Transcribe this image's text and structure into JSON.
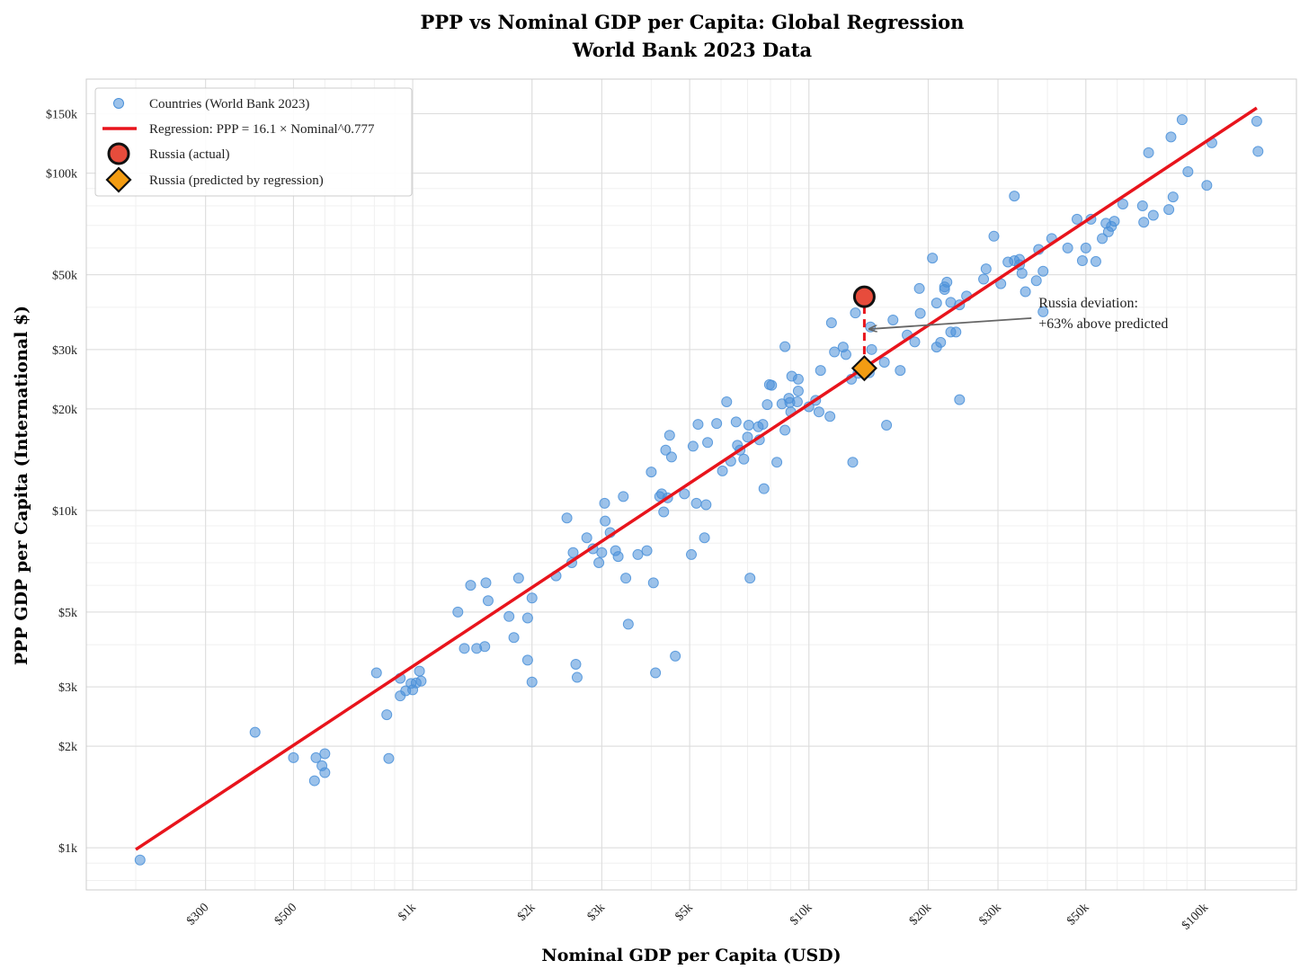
{
  "chart_data": {
    "type": "scatter",
    "title": "PPP vs Nominal GDP per Capita: Global Regression",
    "subtitle": "World Bank 2023 Data",
    "xlabel": "Nominal GDP per Capita (USD)",
    "ylabel": "PPP GDP per Capita (International $)",
    "xscale": "log",
    "yscale": "log",
    "xlim": [
      150,
      170000
    ],
    "ylim": [
      750,
      190000
    ],
    "grid": true,
    "x_ticks": [
      {
        "value": 300,
        "label": "$300"
      },
      {
        "value": 500,
        "label": "$500"
      },
      {
        "value": 1000,
        "label": "$1k"
      },
      {
        "value": 2000,
        "label": "$2k"
      },
      {
        "value": 3000,
        "label": "$3k"
      },
      {
        "value": 5000,
        "label": "$5k"
      },
      {
        "value": 10000,
        "label": "$10k"
      },
      {
        "value": 20000,
        "label": "$20k"
      },
      {
        "value": 30000,
        "label": "$30k"
      },
      {
        "value": 50000,
        "label": "$50k"
      },
      {
        "value": 100000,
        "label": "$100k"
      }
    ],
    "y_ticks": [
      {
        "value": 1000,
        "label": "$1k"
      },
      {
        "value": 2000,
        "label": "$2k"
      },
      {
        "value": 3000,
        "label": "$3k"
      },
      {
        "value": 5000,
        "label": "$5k"
      },
      {
        "value": 10000,
        "label": "$10k"
      },
      {
        "value": 20000,
        "label": "$20k"
      },
      {
        "value": 30000,
        "label": "$30k"
      },
      {
        "value": 50000,
        "label": "$50k"
      },
      {
        "value": 100000,
        "label": "$100k"
      },
      {
        "value": 150000,
        "label": "$150k"
      }
    ],
    "legend": {
      "placement": "top-left",
      "entries": [
        {
          "label": "Countries (World Bank 2023)",
          "marker": "circle",
          "color": "#4a90d9"
        },
        {
          "label": "Regression: PPP = 16.1 × Nominal^0.777",
          "marker": "line",
          "color": "#e8141c"
        },
        {
          "label": "Russia (actual)",
          "marker": "circle-large",
          "color": "#e74c3c"
        },
        {
          "label": "Russia (predicted by regression)",
          "marker": "diamond",
          "color": "#f39c12"
        }
      ]
    },
    "regression": {
      "a": 16.1,
      "b": 0.777,
      "x_range": [
        200,
        135000
      ],
      "color": "#e8141c"
    },
    "russia": {
      "nominal": 13800,
      "actual": 43000,
      "predicted": 26400,
      "actual_color": "#e74c3c",
      "predicted_color": "#f39c12"
    },
    "annotation": {
      "lines": [
        "Russia deviation:",
        "+63% above predicted"
      ],
      "x": 38000,
      "y": 40000,
      "arrow_to_x": 14200,
      "arrow_to_y": 34500
    },
    "countries": {
      "color": "#4a90d9",
      "points": [
        [
          205,
          920
        ],
        [
          400,
          2200
        ],
        [
          500,
          1850
        ],
        [
          570,
          1850
        ],
        [
          590,
          1750
        ],
        [
          600,
          1900
        ],
        [
          600,
          1670
        ],
        [
          565,
          1580
        ],
        [
          810,
          3300
        ],
        [
          860,
          2480
        ],
        [
          870,
          1840
        ],
        [
          930,
          3180
        ],
        [
          930,
          2820
        ],
        [
          960,
          2920
        ],
        [
          990,
          3070
        ],
        [
          1000,
          2940
        ],
        [
          1020,
          3080
        ],
        [
          1040,
          3340
        ],
        [
          1050,
          3120
        ],
        [
          1300,
          5000
        ],
        [
          1350,
          3900
        ],
        [
          1400,
          6000
        ],
        [
          1450,
          3900
        ],
        [
          1520,
          3950
        ],
        [
          1530,
          6100
        ],
        [
          1550,
          5400
        ],
        [
          1750,
          4850
        ],
        [
          1800,
          4200
        ],
        [
          1850,
          6300
        ],
        [
          1950,
          3600
        ],
        [
          1950,
          4800
        ],
        [
          2000,
          3100
        ],
        [
          2000,
          5500
        ],
        [
          2300,
          6400
        ],
        [
          2450,
          9500
        ],
        [
          2520,
          7000
        ],
        [
          2540,
          7500
        ],
        [
          2580,
          3500
        ],
        [
          2600,
          3200
        ],
        [
          2750,
          8300
        ],
        [
          2850,
          7700
        ],
        [
          2950,
          7000
        ],
        [
          3000,
          7500
        ],
        [
          3050,
          10500
        ],
        [
          3060,
          9300
        ],
        [
          3150,
          8600
        ],
        [
          3250,
          7600
        ],
        [
          3300,
          7300
        ],
        [
          3400,
          11000
        ],
        [
          3450,
          6300
        ],
        [
          3500,
          4600
        ],
        [
          3700,
          7400
        ],
        [
          3900,
          7600
        ],
        [
          4000,
          13000
        ],
        [
          4050,
          6100
        ],
        [
          4100,
          3300
        ],
        [
          4200,
          11000
        ],
        [
          4250,
          11200
        ],
        [
          4300,
          9900
        ],
        [
          4350,
          15100
        ],
        [
          4400,
          10900
        ],
        [
          4450,
          16700
        ],
        [
          4500,
          14400
        ],
        [
          4600,
          3700
        ],
        [
          4850,
          11200
        ],
        [
          5050,
          7400
        ],
        [
          5100,
          15500
        ],
        [
          5200,
          10500
        ],
        [
          5250,
          18000
        ],
        [
          5450,
          8300
        ],
        [
          5500,
          10400
        ],
        [
          5550,
          15900
        ],
        [
          5850,
          18100
        ],
        [
          6050,
          13100
        ],
        [
          6200,
          21000
        ],
        [
          6350,
          14000
        ],
        [
          6550,
          18300
        ],
        [
          6600,
          15600
        ],
        [
          6700,
          15100
        ],
        [
          6850,
          14200
        ],
        [
          7000,
          16500
        ],
        [
          7050,
          17900
        ],
        [
          7100,
          6300
        ],
        [
          7450,
          17700
        ],
        [
          7500,
          16200
        ],
        [
          7650,
          18000
        ],
        [
          7700,
          11600
        ],
        [
          7850,
          20600
        ],
        [
          7950,
          23600
        ],
        [
          8050,
          23500
        ],
        [
          8300,
          13900
        ],
        [
          8550,
          20700
        ],
        [
          8700,
          17300
        ],
        [
          8700,
          30600
        ],
        [
          8900,
          21500
        ],
        [
          8950,
          20900
        ],
        [
          9000,
          19600
        ],
        [
          9050,
          25000
        ],
        [
          9350,
          21000
        ],
        [
          9400,
          24500
        ],
        [
          9400,
          22600
        ],
        [
          10000,
          20300
        ],
        [
          10400,
          21200
        ],
        [
          10600,
          19600
        ],
        [
          10700,
          26000
        ],
        [
          11300,
          19000
        ],
        [
          11400,
          36000
        ],
        [
          11600,
          29500
        ],
        [
          12200,
          30500
        ],
        [
          12400,
          29000
        ],
        [
          12800,
          24500
        ],
        [
          12900,
          13900
        ],
        [
          13100,
          38500
        ],
        [
          13300,
          25500
        ],
        [
          13500,
          42000
        ],
        [
          14200,
          25600
        ],
        [
          14400,
          30000
        ],
        [
          14300,
          35000
        ],
        [
          15500,
          27500
        ],
        [
          15700,
          17900
        ],
        [
          16300,
          36700
        ],
        [
          17000,
          26000
        ],
        [
          17700,
          33100
        ],
        [
          19000,
          45500
        ],
        [
          18500,
          31600
        ],
        [
          19100,
          38400
        ],
        [
          20500,
          56000
        ],
        [
          21000,
          41200
        ],
        [
          21000,
          30500
        ],
        [
          21500,
          31500
        ],
        [
          22000,
          46000
        ],
        [
          22000,
          45200
        ],
        [
          22300,
          47500
        ],
        [
          22800,
          41400
        ],
        [
          22800,
          33800
        ],
        [
          23500,
          33800
        ],
        [
          24000,
          21300
        ],
        [
          24000,
          40700
        ],
        [
          25000,
          43200
        ],
        [
          27600,
          48500
        ],
        [
          28000,
          52000
        ],
        [
          29300,
          65000
        ],
        [
          30500,
          47000
        ],
        [
          31800,
          54500
        ],
        [
          33000,
          85500
        ],
        [
          33000,
          55000
        ],
        [
          34000,
          53500
        ],
        [
          34500,
          50500
        ],
        [
          35200,
          44500
        ],
        [
          34000,
          55500
        ],
        [
          37500,
          48000
        ],
        [
          38000,
          59400
        ],
        [
          39000,
          38800
        ],
        [
          39000,
          51200
        ],
        [
          41000,
          64000
        ],
        [
          45000,
          60000
        ],
        [
          47500,
          73000
        ],
        [
          49000,
          55000
        ],
        [
          50000,
          60000
        ],
        [
          51500,
          73000
        ],
        [
          53000,
          54700
        ],
        [
          55000,
          64000
        ],
        [
          56200,
          71000
        ],
        [
          57000,
          67000
        ],
        [
          58000,
          69500
        ],
        [
          59000,
          72000
        ],
        [
          62000,
          81000
        ],
        [
          69500,
          80000
        ],
        [
          70000,
          71500
        ],
        [
          72000,
          115000
        ],
        [
          74000,
          75000
        ],
        [
          81000,
          78000
        ],
        [
          82000,
          128000
        ],
        [
          83000,
          85000
        ],
        [
          87500,
          144000
        ],
        [
          90500,
          101000
        ],
        [
          101000,
          92000
        ],
        [
          104000,
          123000
        ],
        [
          135000,
          142500
        ],
        [
          136000,
          116000
        ]
      ]
    }
  }
}
